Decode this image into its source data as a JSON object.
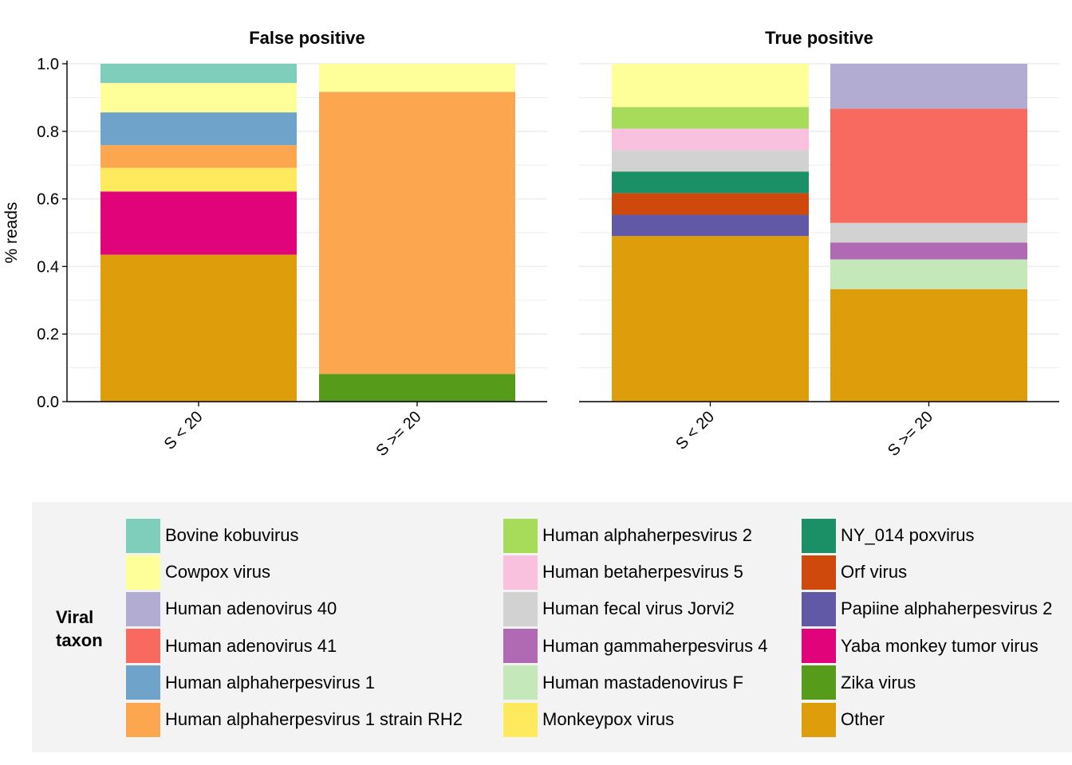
{
  "chart_data": {
    "type": "bar",
    "stacked": true,
    "ylabel": "% reads",
    "ylim": [
      0,
      1.0
    ],
    "yticks": [
      "0.0",
      "0.2",
      "0.4",
      "0.6",
      "0.8",
      "1.0"
    ],
    "grid": true,
    "legend_title": "Viral taxon",
    "legend_position": "bottom",
    "legend": [
      {
        "name": "Bovine kobuvirus",
        "color": "#7fcdbb"
      },
      {
        "name": "Cowpox virus",
        "color": "#ffff99"
      },
      {
        "name": "Human adenovirus 40",
        "color": "#b2abd2"
      },
      {
        "name": "Human adenovirus 41",
        "color": "#f8695f"
      },
      {
        "name": "Human alphaherpesvirus 1",
        "color": "#6fa3ca"
      },
      {
        "name": "Human alphaherpesvirus 1 strain RH2",
        "color": "#fca650"
      },
      {
        "name": "Human alphaherpesvirus 2",
        "color": "#a6dc5a"
      },
      {
        "name": "Human betaherpesvirus 5",
        "color": "#f9c1de"
      },
      {
        "name": "Human fecal virus Jorvi2",
        "color": "#d2d2d2"
      },
      {
        "name": "Human gammaherpesvirus 4",
        "color": "#af6ab3"
      },
      {
        "name": "Human mastadenovirus F",
        "color": "#c4e8b9"
      },
      {
        "name": "Monkeypox virus",
        "color": "#ffe95c"
      },
      {
        "name": "NY_014 poxvirus",
        "color": "#1b9066"
      },
      {
        "name": "Orf virus",
        "color": "#d0490c"
      },
      {
        "name": "Papiine alphaherpesvirus 2",
        "color": "#6158a6"
      },
      {
        "name": "Yaba monkey tumor virus",
        "color": "#e0037a"
      },
      {
        "name": "Zika virus",
        "color": "#569b1a"
      },
      {
        "name": "Other",
        "color": "#de9d0b"
      }
    ],
    "panels": [
      {
        "title": "False positive",
        "categories": [
          "S < 20",
          "S >= 20"
        ],
        "bars": [
          {
            "category": "S < 20",
            "segments": [
              {
                "taxon": "Other",
                "value": 0.435
              },
              {
                "taxon": "Yaba monkey tumor virus",
                "value": 0.187
              },
              {
                "taxon": "Monkeypox virus",
                "value": 0.07
              },
              {
                "taxon": "Human alphaherpesvirus 1 strain RH2",
                "value": 0.067
              },
              {
                "taxon": "Human alphaherpesvirus 1",
                "value": 0.097
              },
              {
                "taxon": "Cowpox virus",
                "value": 0.087
              },
              {
                "taxon": "Bovine kobuvirus",
                "value": 0.057
              }
            ]
          },
          {
            "category": "S >= 20",
            "segments": [
              {
                "taxon": "Zika virus",
                "value": 0.082
              },
              {
                "taxon": "Human alphaherpesvirus 1 strain RH2",
                "value": 0.835
              },
              {
                "taxon": "Cowpox virus",
                "value": 0.083
              }
            ]
          }
        ]
      },
      {
        "title": "True positive",
        "categories": [
          "S < 20",
          "S >= 20"
        ],
        "bars": [
          {
            "category": "S < 20",
            "segments": [
              {
                "taxon": "Other",
                "value": 0.49
              },
              {
                "taxon": "Papiine alphaherpesvirus 2",
                "value": 0.063
              },
              {
                "taxon": "Orf virus",
                "value": 0.064
              },
              {
                "taxon": "NY_014 poxvirus",
                "value": 0.064
              },
              {
                "taxon": "Human fecal virus Jorvi2",
                "value": 0.063
              },
              {
                "taxon": "Human betaherpesvirus 5",
                "value": 0.064
              },
              {
                "taxon": "Human alphaherpesvirus 2",
                "value": 0.064
              },
              {
                "taxon": "Cowpox virus",
                "value": 0.128
              }
            ]
          },
          {
            "category": "S >= 20",
            "segments": [
              {
                "taxon": "Other",
                "value": 0.333
              },
              {
                "taxon": "Human mastadenovirus F",
                "value": 0.088
              },
              {
                "taxon": "Human gammaherpesvirus 4",
                "value": 0.05
              },
              {
                "taxon": "Human fecal virus Jorvi2",
                "value": 0.058
              },
              {
                "taxon": "Human adenovirus 41",
                "value": 0.338
              },
              {
                "taxon": "Human adenovirus 40",
                "value": 0.133
              }
            ]
          }
        ]
      }
    ]
  }
}
